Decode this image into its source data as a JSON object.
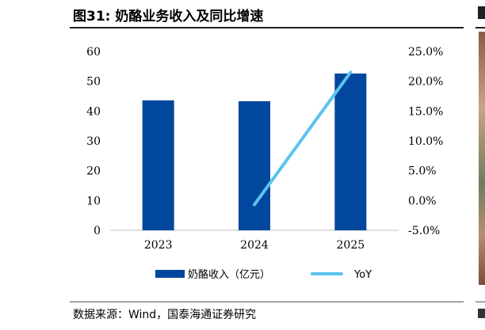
{
  "figure": {
    "title": "图31:  奶酪业务收入及同比增速",
    "source": "数据来源：Wind，国泰海通证券研究"
  },
  "chart_data": {
    "type": "bar",
    "categories": [
      "2023",
      "2024",
      "2025"
    ],
    "series": [
      {
        "name": "奶酪收入（亿元）",
        "kind": "bar",
        "axis": "left",
        "values": [
          43.6,
          43.3,
          52.6
        ],
        "color": "#00479d"
      },
      {
        "name": "YoY",
        "kind": "line",
        "axis": "right",
        "values": [
          null,
          -0.7,
          21.5
        ],
        "color": "#5bc3ee"
      }
    ],
    "y_left": {
      "range": [
        0,
        60
      ],
      "ticks": [
        "0",
        "10",
        "20",
        "30",
        "40",
        "50",
        "60"
      ]
    },
    "y_right": {
      "range": [
        -5,
        25
      ],
      "ticks": [
        "-5.0%",
        "0.0%",
        "5.0%",
        "10.0%",
        "15.0%",
        "20.0%",
        "25.0%"
      ]
    },
    "grid": false,
    "legend": "bottom"
  }
}
